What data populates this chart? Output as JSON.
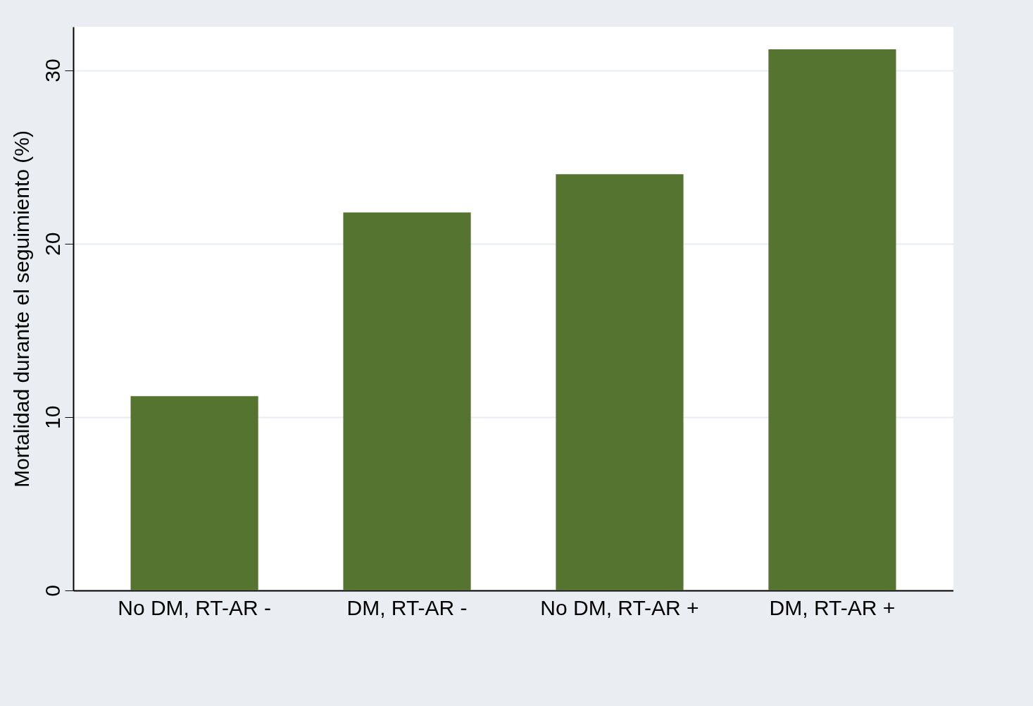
{
  "chart_data": {
    "type": "bar",
    "ylabel": "Mortalidad durante el seguimiento (%)",
    "categories": [
      "No DM, RT-AR -",
      "DM, RT-AR -",
      "No DM, RT-AR +",
      "DM, RT-AR +"
    ],
    "values": [
      11.2,
      21.8,
      24.0,
      31.2
    ],
    "color": "#557430",
    "ylim": [
      0,
      32.5
    ],
    "yticks": [
      0,
      10,
      20,
      30
    ],
    "grid": "y"
  }
}
